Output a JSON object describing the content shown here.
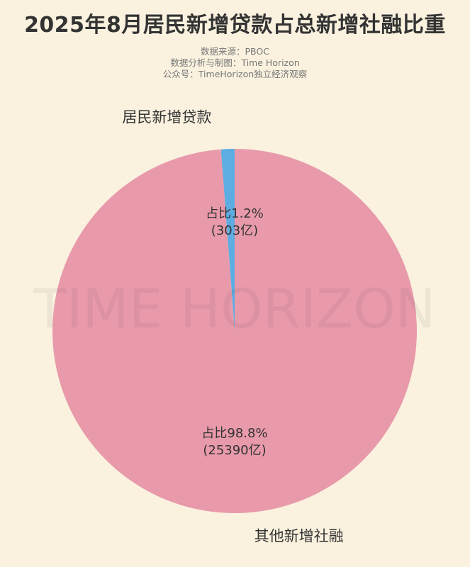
{
  "chart_data": {
    "type": "pie",
    "title": "2025年8月居民新增贷款占总新增社融比重",
    "subtitles": [
      "数据来源：PBOC",
      "数据分析与制图：Time Horizon",
      "公众号：TimeHorizon独立经济观察"
    ],
    "watermark": "TIME HORIZON",
    "slices": [
      {
        "label": "居民新增贷款",
        "value": 303,
        "percent": 1.2,
        "inner_label": [
          "占比1.2%",
          "(303亿)"
        ],
        "color": "#5dade2"
      },
      {
        "label": "其他新增社融",
        "value": 25390,
        "percent": 98.8,
        "inner_label": [
          "占比98.8%",
          "(25390亿)"
        ],
        "color": "#e89aab"
      }
    ],
    "start_angle": "top",
    "direction": "counterclockwise"
  }
}
